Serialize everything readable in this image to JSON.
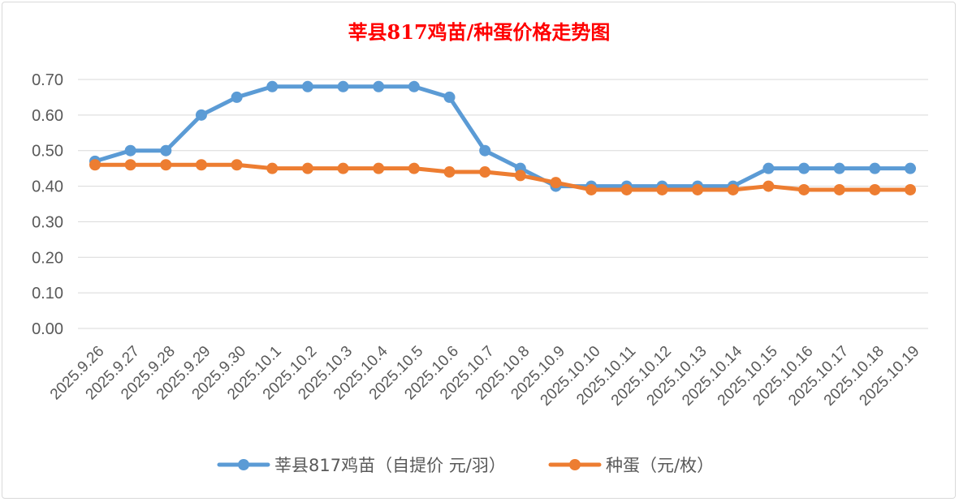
{
  "chart_data": {
    "type": "line",
    "title": "莘县817鸡苗/种蛋价格走势图",
    "xlabel": "",
    "ylabel": "",
    "ylim": [
      0,
      0.7
    ],
    "yticks": [
      "0.00",
      "0.10",
      "0.20",
      "0.30",
      "0.40",
      "0.50",
      "0.60",
      "0.70"
    ],
    "categories": [
      "2025.9.26",
      "2025.9.27",
      "2025.9.28",
      "2025.9.29",
      "2025.9.30",
      "2025.10.1",
      "2025.10.2",
      "2025.10.3",
      "2025.10.4",
      "2025.10.5",
      "2025.10.6",
      "2025.10.7",
      "2025.10.8",
      "2025.10.9",
      "2025.10.10",
      "2025.10.11",
      "2025.10.12",
      "2025.10.13",
      "2025.10.14",
      "2025.10.15",
      "2025.10.16",
      "2025.10.17",
      "2025.10.18",
      "2025.10.19"
    ],
    "series": [
      {
        "name": "莘县817鸡苗（自提价 元/羽）",
        "color": "#5b9bd5",
        "values": [
          0.47,
          0.5,
          0.5,
          0.6,
          0.65,
          0.68,
          0.68,
          0.68,
          0.68,
          0.68,
          0.65,
          0.5,
          0.45,
          0.4,
          0.4,
          0.4,
          0.4,
          0.4,
          0.4,
          0.45,
          0.45,
          0.45,
          0.45,
          0.45
        ]
      },
      {
        "name": "种蛋（元/枚）",
        "color": "#ed7d31",
        "values": [
          0.46,
          0.46,
          0.46,
          0.46,
          0.46,
          0.45,
          0.45,
          0.45,
          0.45,
          0.45,
          0.44,
          0.44,
          0.43,
          0.41,
          0.39,
          0.39,
          0.39,
          0.39,
          0.39,
          0.4,
          0.39,
          0.39,
          0.39,
          0.39
        ]
      }
    ],
    "grid": true,
    "legend": "bottom",
    "colors": {
      "title": "#ff0000",
      "gridline": "#d9d9d9",
      "text": "#595959"
    }
  }
}
